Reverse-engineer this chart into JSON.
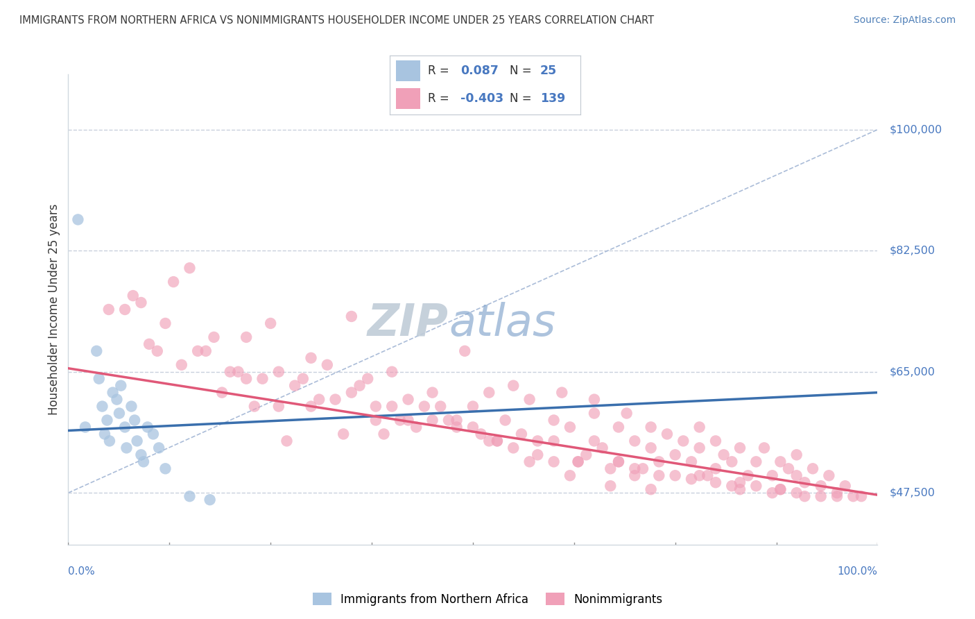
{
  "title": "IMMIGRANTS FROM NORTHERN AFRICA VS NONIMMIGRANTS HOUSEHOLDER INCOME UNDER 25 YEARS CORRELATION CHART",
  "source": "Source: ZipAtlas.com",
  "ylabel": "Householder Income Under 25 years",
  "y_ticks": [
    47500,
    65000,
    82500,
    100000
  ],
  "y_tick_labels": [
    "$47,500",
    "$65,000",
    "$82,500",
    "$100,000"
  ],
  "blue_R": 0.087,
  "pink_R": -0.403,
  "blue_N": 25,
  "pink_N": 139,
  "blue_color": "#a8c4e0",
  "pink_color": "#f0a0b8",
  "blue_line_color": "#3a6fad",
  "pink_line_color": "#e05878",
  "diag_color": "#aabcd8",
  "grid_color": "#c8d0dc",
  "title_color": "#383838",
  "source_color": "#5080b8",
  "right_label_color": "#4878c0",
  "legend_r_color": "#4878c0",
  "watermark_zip_color": "#c0ccd8",
  "watermark_atlas_color": "#8aaacf",
  "blue_legend_color": "#a8c4e0",
  "pink_legend_color": "#f0a0b8",
  "x_min": 0,
  "x_max": 100,
  "y_min": 40000,
  "y_max": 108000,
  "pink_line_y0": 65500,
  "pink_line_y1": 47200,
  "blue_line_y0": 56500,
  "blue_line_y1": 62000,
  "diag_y0": 47500,
  "diag_y1": 100000,
  "blue_x": [
    1.2,
    2.1,
    3.5,
    3.8,
    4.2,
    4.5,
    4.8,
    5.1,
    5.5,
    6.0,
    6.3,
    6.5,
    7.0,
    7.2,
    7.8,
    8.2,
    8.5,
    9.0,
    9.3,
    9.8,
    10.5,
    11.2,
    12.0,
    15.0,
    17.5
  ],
  "blue_y": [
    87000,
    57000,
    68000,
    64000,
    60000,
    56000,
    58000,
    55000,
    62000,
    61000,
    59000,
    63000,
    57000,
    54000,
    60000,
    58000,
    55000,
    53000,
    52000,
    57000,
    56000,
    54000,
    51000,
    47000,
    46500
  ],
  "pink_x": [
    5,
    10,
    13,
    17,
    19,
    22,
    22,
    25,
    26,
    28,
    30,
    30,
    33,
    35,
    36,
    38,
    40,
    42,
    43,
    45,
    46,
    48,
    49,
    50,
    50,
    52,
    53,
    54,
    55,
    56,
    57,
    58,
    60,
    60,
    61,
    62,
    63,
    65,
    65,
    65,
    66,
    68,
    68,
    69,
    70,
    70,
    72,
    72,
    73,
    74,
    75,
    75,
    76,
    77,
    78,
    78,
    79,
    80,
    80,
    81,
    82,
    82,
    83,
    84,
    85,
    85,
    86,
    87,
    88,
    88,
    89,
    90,
    90,
    91,
    92,
    93,
    94,
    95,
    96,
    97,
    20,
    23,
    27,
    31,
    34,
    39,
    44,
    47,
    51,
    64,
    67,
    71,
    77,
    83,
    87,
    91,
    15,
    18,
    32,
    37,
    42,
    52,
    57,
    62,
    67,
    72,
    29,
    35,
    40,
    45,
    55,
    60,
    70,
    80,
    90,
    95,
    11,
    14,
    24,
    38,
    48,
    58,
    68,
    78,
    88,
    98,
    7,
    12,
    16,
    21,
    26,
    41,
    53,
    63,
    73,
    83,
    93,
    8,
    9
  ],
  "pink_y": [
    74000,
    69000,
    78000,
    68000,
    62000,
    70000,
    64000,
    72000,
    65000,
    63000,
    60000,
    67000,
    61000,
    73000,
    63000,
    58000,
    65000,
    61000,
    57000,
    62000,
    60000,
    58000,
    68000,
    60000,
    57000,
    62000,
    55000,
    58000,
    63000,
    56000,
    61000,
    53000,
    58000,
    55000,
    62000,
    57000,
    52000,
    59000,
    55000,
    61000,
    54000,
    57000,
    52000,
    59000,
    55000,
    51000,
    57000,
    54000,
    52000,
    56000,
    50000,
    53000,
    55000,
    52000,
    57000,
    54000,
    50000,
    55000,
    51000,
    53000,
    52000,
    48500,
    54000,
    50000,
    52000,
    48500,
    54000,
    50000,
    52000,
    48000,
    51000,
    50000,
    53000,
    49000,
    51000,
    48500,
    50000,
    47500,
    48500,
    47000,
    65000,
    60000,
    55000,
    61000,
    56000,
    56000,
    60000,
    58000,
    56000,
    53000,
    51000,
    51000,
    49500,
    49000,
    47500,
    47000,
    80000,
    70000,
    66000,
    64000,
    58000,
    55000,
    52000,
    50000,
    48500,
    48000,
    64000,
    62000,
    60000,
    58000,
    54000,
    52000,
    50000,
    49000,
    47500,
    47000,
    68000,
    66000,
    64000,
    60000,
    57000,
    55000,
    52000,
    50000,
    48000,
    47000,
    74000,
    72000,
    68000,
    65000,
    60000,
    58000,
    55000,
    52000,
    50000,
    48000,
    47000,
    76000,
    75000
  ]
}
